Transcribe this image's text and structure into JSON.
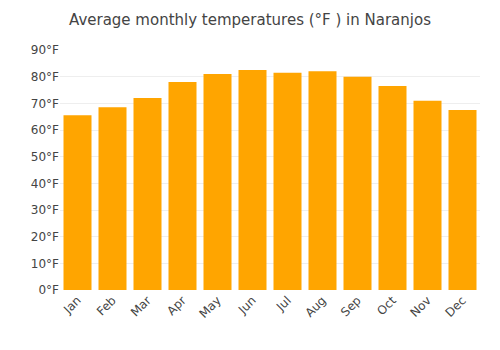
{
  "chart_data": {
    "type": "bar",
    "title": "Average monthly temperatures (°F ) in Naranjos",
    "categories": [
      "Jan",
      "Feb",
      "Mar",
      "Apr",
      "May",
      "Jun",
      "Jul",
      "Aug",
      "Sep",
      "Oct",
      "Nov",
      "Dec"
    ],
    "values": [
      65.5,
      68.5,
      72.0,
      78.0,
      81.0,
      82.5,
      81.5,
      82.0,
      80.0,
      76.5,
      71.0,
      67.5
    ],
    "color": "#FFA500",
    "ylim": [
      0,
      90
    ],
    "yticks": [
      {
        "value": 0,
        "label": "0°F"
      },
      {
        "value": 10,
        "label": "10°F"
      },
      {
        "value": 20,
        "label": "20°F"
      },
      {
        "value": 30,
        "label": "30°F"
      },
      {
        "value": 40,
        "label": "40°F"
      },
      {
        "value": 50,
        "label": "50°F"
      },
      {
        "value": 60,
        "label": "60°F"
      },
      {
        "value": 70,
        "label": "70°F"
      },
      {
        "value": 80,
        "label": "80°F"
      },
      {
        "value": 90,
        "label": "90°F"
      }
    ],
    "grid": true
  }
}
